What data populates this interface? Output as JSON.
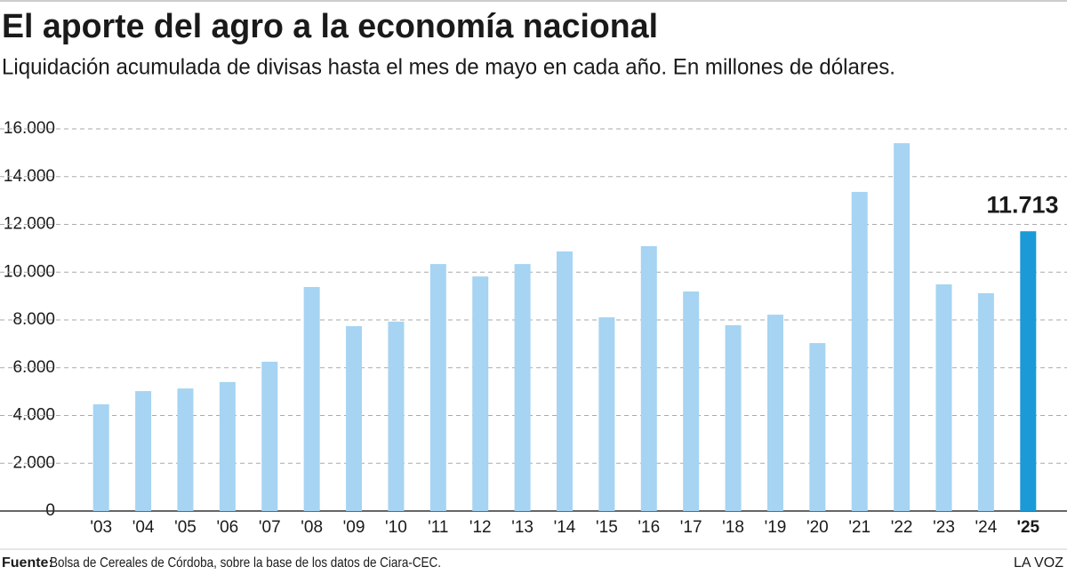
{
  "chart_data": {
    "type": "bar",
    "title": "El aporte del agro a la economía nacional",
    "subtitle": "Liquidación acumulada de divisas hasta el mes de mayo en cada año. En millones de dólares.",
    "categories": [
      "'03",
      "'04",
      "'05",
      "'06",
      "'07",
      "'08",
      "'09",
      "'10",
      "'11",
      "'12",
      "'13",
      "'14",
      "'15",
      "'16",
      "'17",
      "'18",
      "'19",
      "'20",
      "'21",
      "'22",
      "'23",
      "'24",
      "'25"
    ],
    "values": [
      4470,
      5020,
      5130,
      5400,
      6250,
      9380,
      7740,
      7930,
      10340,
      9820,
      10340,
      10870,
      8110,
      11090,
      9190,
      7780,
      8220,
      7030,
      13360,
      15400,
      9490,
      9120,
      11713
    ],
    "value_labels": [
      null,
      null,
      null,
      null,
      null,
      null,
      null,
      null,
      null,
      null,
      null,
      null,
      null,
      null,
      null,
      null,
      null,
      null,
      null,
      null,
      null,
      null,
      "11.713"
    ],
    "colors": [
      "#a6d4f2",
      "#a6d4f2",
      "#a6d4f2",
      "#a6d4f2",
      "#a6d4f2",
      "#a6d4f2",
      "#a6d4f2",
      "#a6d4f2",
      "#a6d4f2",
      "#a6d4f2",
      "#a6d4f2",
      "#a6d4f2",
      "#a6d4f2",
      "#a6d4f2",
      "#a6d4f2",
      "#a6d4f2",
      "#a6d4f2",
      "#a6d4f2",
      "#a6d4f2",
      "#a6d4f2",
      "#a6d4f2",
      "#a6d4f2",
      "#1b9ad7"
    ],
    "ylim": [
      0,
      16000
    ],
    "yticks": [
      0,
      {
        "value": 2000,
        "label": "2.000"
      },
      {
        "value": 4000,
        "label": "4.000"
      },
      {
        "value": 6000,
        "label": "6.000"
      },
      {
        "value": 8000,
        "label": "8.000"
      },
      {
        "value": 10000,
        "label": "10.000"
      },
      {
        "value": 12000,
        "label": "12.000"
      },
      {
        "value": 14000,
        "label": "14.000"
      },
      {
        "value": 16000,
        "label": "16.000"
      }
    ],
    "grid": true,
    "source_label": "Fuente:",
    "source": "Bolsa de Cereales de Córdoba, sobre la base de los datos de Ciara-CEC.",
    "credit": "LA VOZ"
  }
}
